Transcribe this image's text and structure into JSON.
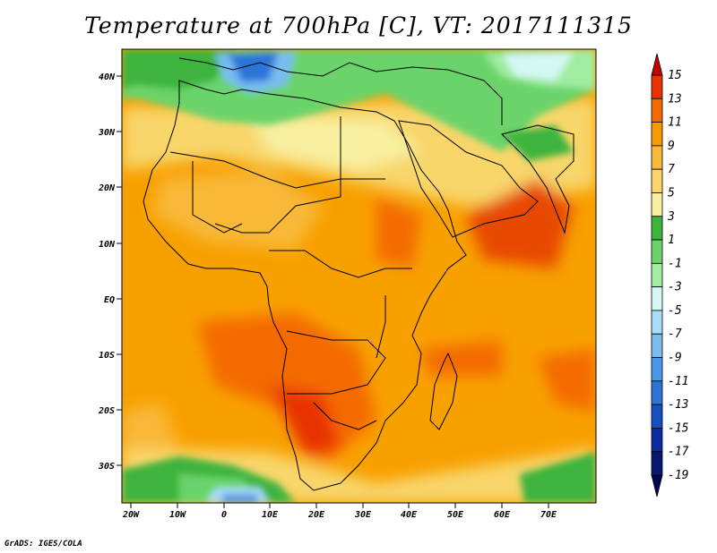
{
  "title": "Temperature at 700hPa [C], VT: 2017111315",
  "credit": "GrADS: IGES/COLA",
  "lat_labels": [
    "40N",
    "30N",
    "20N",
    "10N",
    "EQ",
    "10S",
    "20S",
    "30S"
  ],
  "lon_labels": [
    "20W",
    "10W",
    "0",
    "10E",
    "20E",
    "30E",
    "40E",
    "50E",
    "60E",
    "70E"
  ],
  "colorbar": {
    "labels": [
      "15",
      "13",
      "11",
      "9",
      "7",
      "5",
      "3",
      "1",
      "-1",
      "-3",
      "-5",
      "-7",
      "-9",
      "-11",
      "-13",
      "-15",
      "-17",
      "-19"
    ],
    "colors": [
      "#c80000",
      "#e83200",
      "#f46a00",
      "#f89a00",
      "#f8b838",
      "#f8d66a",
      "#f8f0a0",
      "#3cb43c",
      "#6ad46a",
      "#a0eca0",
      "#d4f8f4",
      "#a8dcf8",
      "#78bcf0",
      "#4c98e8",
      "#2c74d8",
      "#1450c0",
      "#0a2ca0",
      "#061870",
      "#000850"
    ]
  },
  "colors": {
    "ocean_warm": "#f8a000",
    "land_hot": "#f47a10",
    "cold_north": "#6ad46a",
    "very_cold": "#2c74d8"
  }
}
